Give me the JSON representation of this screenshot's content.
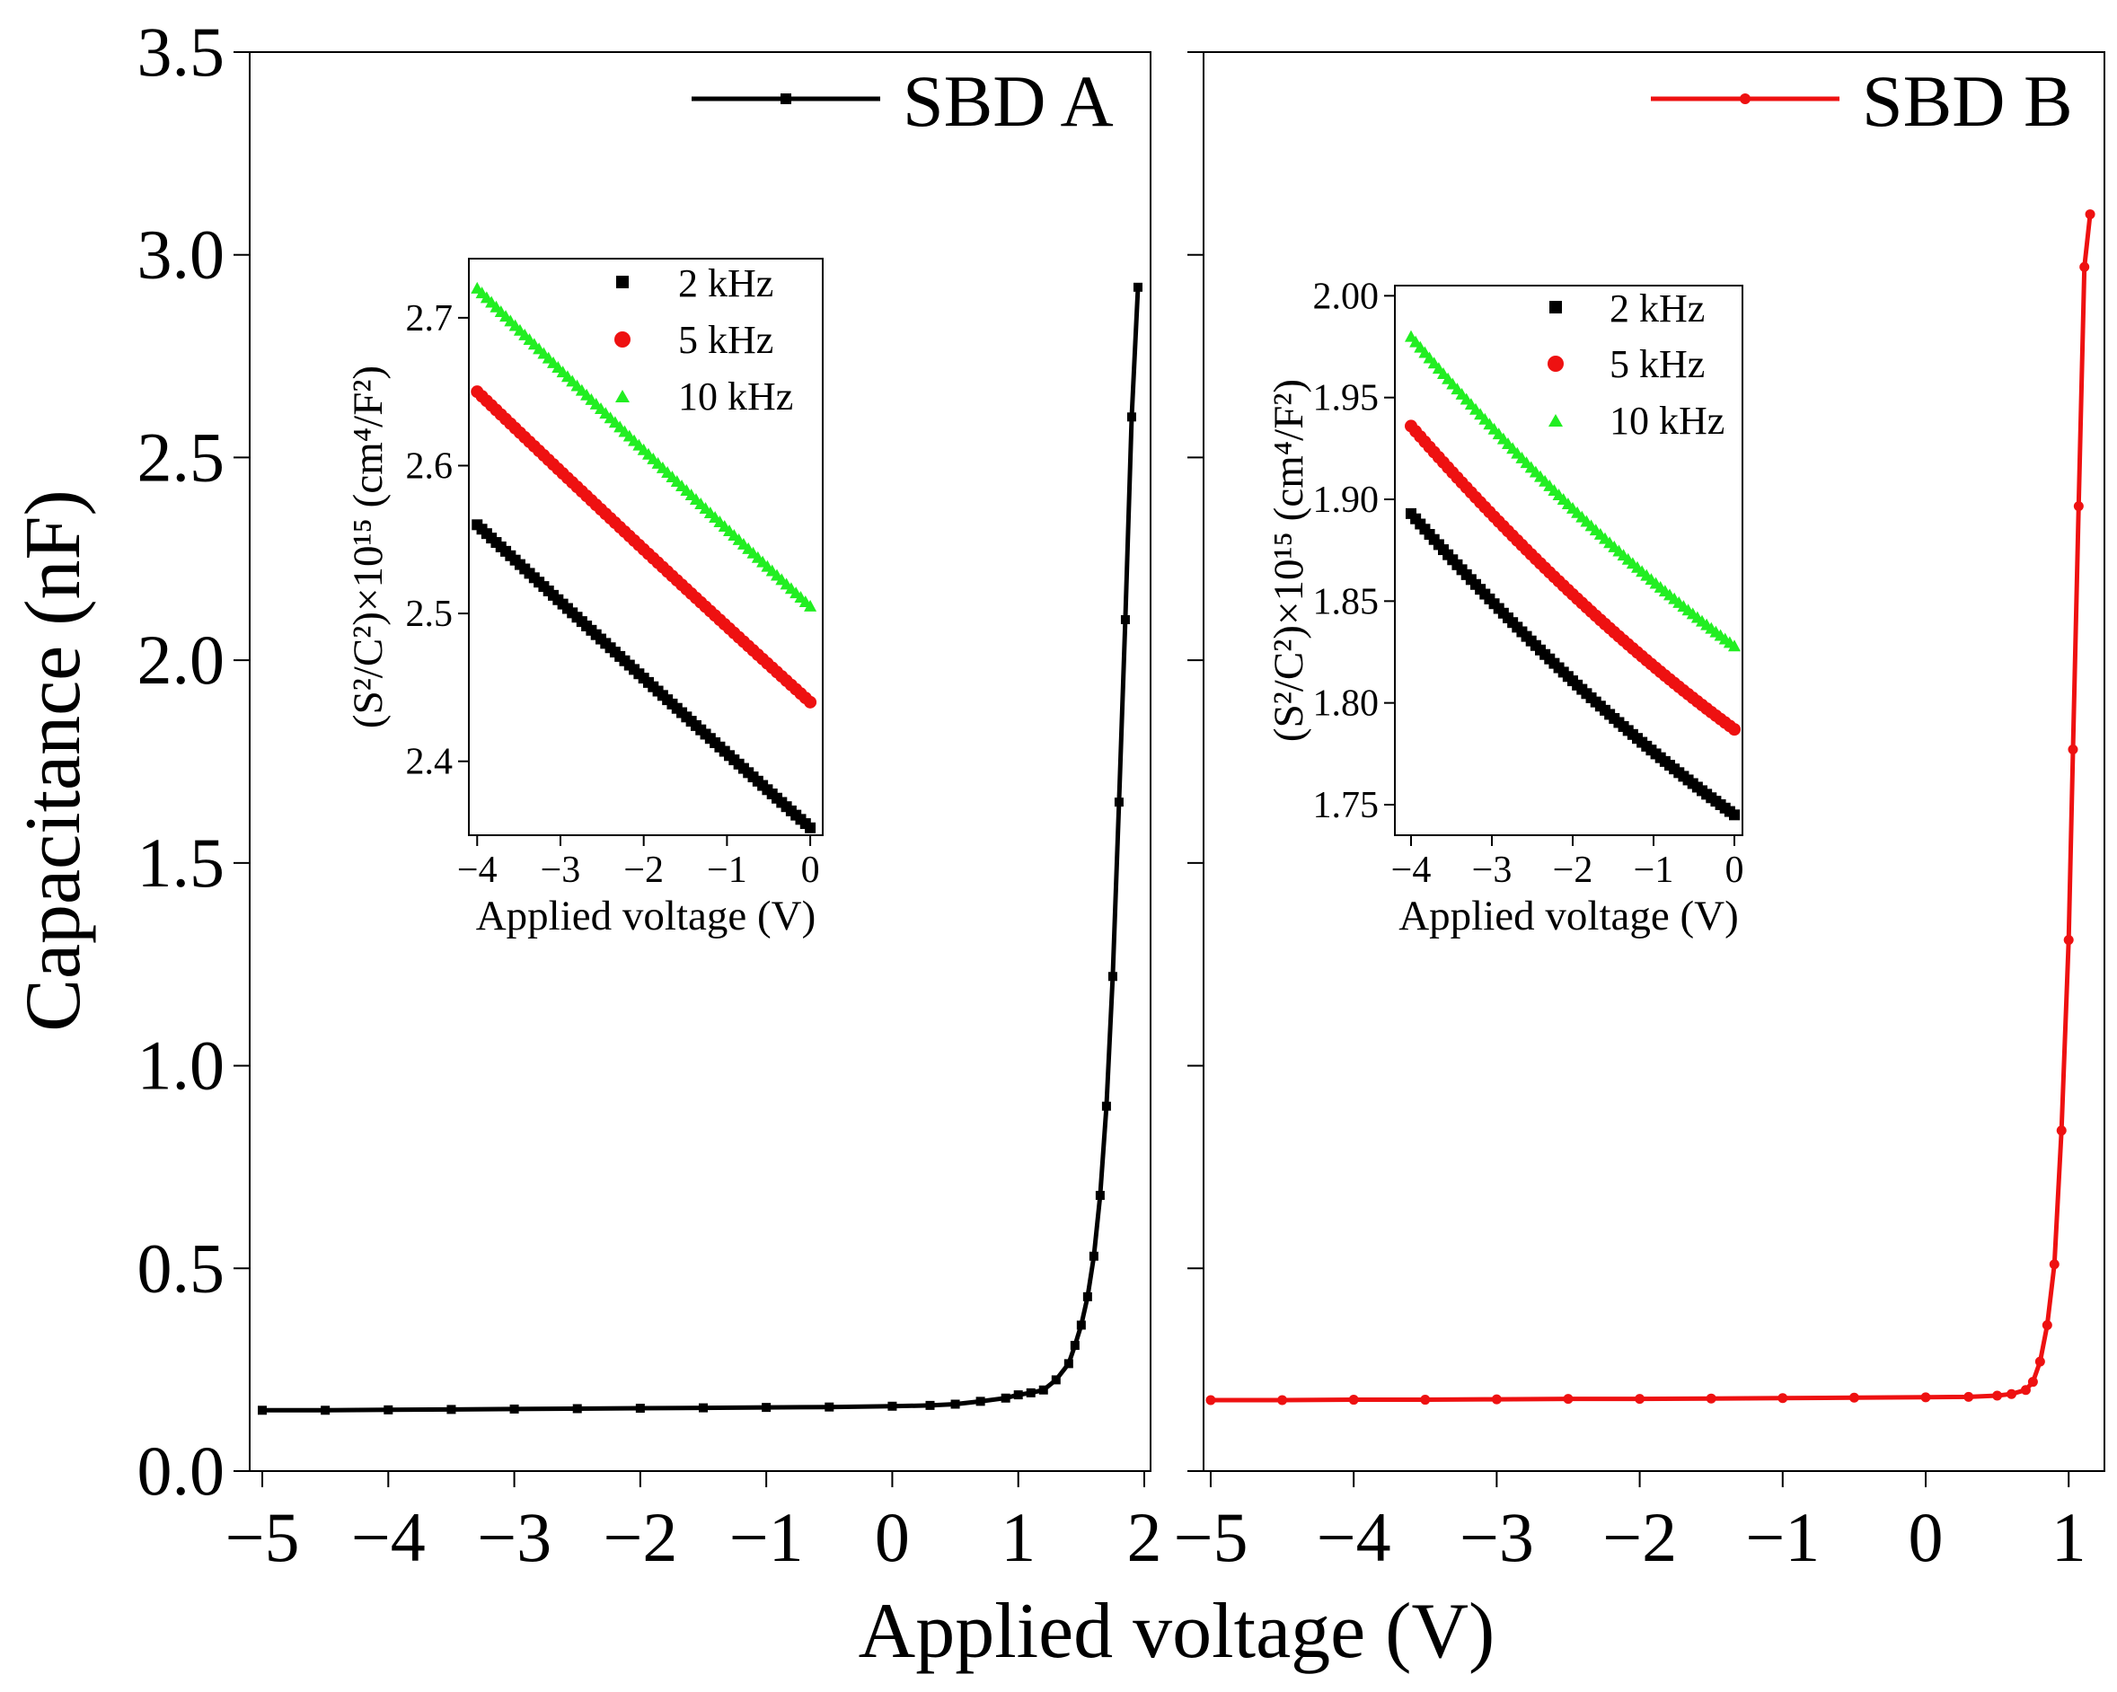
{
  "figure": {
    "y_label": "Capacitance (nF)",
    "x_label": "Applied voltage (V)"
  },
  "chart_data": [
    {
      "type": "line",
      "name": "main-left",
      "title": "",
      "xlabel": "Applied voltage (V)",
      "ylabel": "Capacitance (nF)",
      "xlim": [
        -5.1,
        2.05
      ],
      "ylim": [
        0,
        3.5
      ],
      "x_ticks": [
        -5,
        -4,
        -3,
        -2,
        -1,
        0,
        1,
        2
      ],
      "x_tick_labels": [
        "−5",
        "−4",
        "−3",
        "−2",
        "−1",
        "0",
        "1",
        "2"
      ],
      "y_ticks": [
        0,
        0.5,
        1.0,
        1.5,
        2.0,
        2.5,
        3.0,
        3.5
      ],
      "y_tick_labels": [
        "0.0",
        "0.5",
        "1.0",
        "1.5",
        "2.0",
        "2.5",
        "3.0",
        "3.5"
      ],
      "legend": [
        "SBD A"
      ],
      "series": [
        {
          "name": "SBD A",
          "color": "#000000",
          "points": [
            [
              -5.0,
              0.15
            ],
            [
              -4.5,
              0.15
            ],
            [
              -4.0,
              0.151
            ],
            [
              -3.5,
              0.152
            ],
            [
              -3.0,
              0.153
            ],
            [
              -2.5,
              0.154
            ],
            [
              -2.0,
              0.155
            ],
            [
              -1.5,
              0.156
            ],
            [
              -1.0,
              0.157
            ],
            [
              -0.5,
              0.158
            ],
            [
              0.0,
              0.16
            ],
            [
              0.3,
              0.162
            ],
            [
              0.5,
              0.165
            ],
            [
              0.7,
              0.172
            ],
            [
              0.9,
              0.18
            ],
            [
              1.0,
              0.188
            ],
            [
              1.1,
              0.193
            ],
            [
              1.2,
              0.2
            ],
            [
              1.3,
              0.225
            ],
            [
              1.4,
              0.265
            ],
            [
              1.45,
              0.31
            ],
            [
              1.5,
              0.36
            ],
            [
              1.55,
              0.43
            ],
            [
              1.6,
              0.53
            ],
            [
              1.65,
              0.68
            ],
            [
              1.7,
              0.9
            ],
            [
              1.75,
              1.22
            ],
            [
              1.8,
              1.65
            ],
            [
              1.85,
              2.1
            ],
            [
              1.9,
              2.6
            ],
            [
              1.95,
              2.92
            ]
          ]
        }
      ]
    },
    {
      "type": "line",
      "name": "main-right",
      "title": "",
      "xlabel": "Applied voltage (V)",
      "ylabel": "",
      "xlim": [
        -5.05,
        1.25
      ],
      "ylim": [
        0,
        3.5
      ],
      "x_ticks": [
        -5,
        -4,
        -3,
        -2,
        -1,
        0,
        1
      ],
      "x_tick_labels": [
        "−5",
        "−4",
        "−3",
        "−2",
        "−1",
        "0",
        "1"
      ],
      "legend": [
        "SBD B"
      ],
      "series": [
        {
          "name": "SBD B",
          "color": "#ee1111",
          "points": [
            [
              -5.0,
              0.175
            ],
            [
              -4.5,
              0.175
            ],
            [
              -4.0,
              0.176
            ],
            [
              -3.5,
              0.176
            ],
            [
              -3.0,
              0.177
            ],
            [
              -2.5,
              0.178
            ],
            [
              -2.0,
              0.178
            ],
            [
              -1.5,
              0.179
            ],
            [
              -1.0,
              0.18
            ],
            [
              -0.5,
              0.181
            ],
            [
              0.0,
              0.182
            ],
            [
              0.3,
              0.183
            ],
            [
              0.5,
              0.186
            ],
            [
              0.6,
              0.19
            ],
            [
              0.7,
              0.2
            ],
            [
              0.75,
              0.22
            ],
            [
              0.8,
              0.27
            ],
            [
              0.85,
              0.36
            ],
            [
              0.9,
              0.51
            ],
            [
              0.95,
              0.84
            ],
            [
              1.0,
              1.31
            ],
            [
              1.03,
              1.78
            ],
            [
              1.07,
              2.38
            ],
            [
              1.11,
              2.97
            ],
            [
              1.15,
              3.1
            ]
          ]
        }
      ]
    },
    {
      "type": "scatter",
      "name": "inset-left",
      "title": "",
      "xlabel": "Applied voltage (V)",
      "ylabel": "(S²/C²)×10¹⁵ (cm⁴/F²)",
      "xlim": [
        -4.1,
        0.15
      ],
      "ylim": [
        2.35,
        2.74
      ],
      "x_ticks": [
        -4,
        -3,
        -2,
        -1,
        0
      ],
      "x_tick_labels": [
        "−4",
        "−3",
        "−2",
        "−1",
        "0"
      ],
      "y_ticks": [
        2.4,
        2.5,
        2.6,
        2.7
      ],
      "y_tick_labels": [
        "2.4",
        "2.5",
        "2.6",
        "2.7"
      ],
      "legend": [
        "2 kHz",
        "5 kHz",
        "10 kHz"
      ],
      "series": [
        {
          "name": "2 kHz",
          "color": "#000000",
          "marker": "square",
          "y_start": 2.56,
          "y_end": 2.355,
          "curvature": 0.006
        },
        {
          "name": "5 kHz",
          "color": "#ee1111",
          "marker": "circle",
          "y_start": 2.65,
          "y_end": 2.44,
          "curvature": 0.008
        },
        {
          "name": "10 kHz",
          "color": "#22ee22",
          "marker": "triangle",
          "y_start": 2.72,
          "y_end": 2.505,
          "curvature": 0.008
        }
      ]
    },
    {
      "type": "scatter",
      "name": "inset-right",
      "title": "",
      "xlabel": "Applied voltage (V)",
      "ylabel": "(S²/C²)×10¹⁵ (cm⁴/F²)",
      "xlim": [
        -4.2,
        0.1
      ],
      "ylim": [
        1.735,
        2.005
      ],
      "x_ticks": [
        -4,
        -3,
        -2,
        -1,
        0
      ],
      "x_tick_labels": [
        "−4",
        "−3",
        "−2",
        "−1",
        "0"
      ],
      "y_ticks": [
        1.75,
        1.8,
        1.85,
        1.9,
        1.95,
        2.0
      ],
      "y_tick_labels": [
        "1.75",
        "1.80",
        "1.85",
        "1.90",
        "1.95",
        "2.00"
      ],
      "legend": [
        "2 kHz",
        "5 kHz",
        "10 kHz"
      ],
      "series": [
        {
          "name": "2 kHz",
          "color": "#000000",
          "marker": "square",
          "y_start": 1.893,
          "y_end": 1.745,
          "curvature": 0.055
        },
        {
          "name": "5 kHz",
          "color": "#ee1111",
          "marker": "circle",
          "y_start": 1.936,
          "y_end": 1.787,
          "curvature": 0.055
        },
        {
          "name": "10 kHz",
          "color": "#22ee22",
          "marker": "triangle",
          "y_start": 1.98,
          "y_end": 1.828,
          "curvature": 0.055
        }
      ]
    }
  ]
}
